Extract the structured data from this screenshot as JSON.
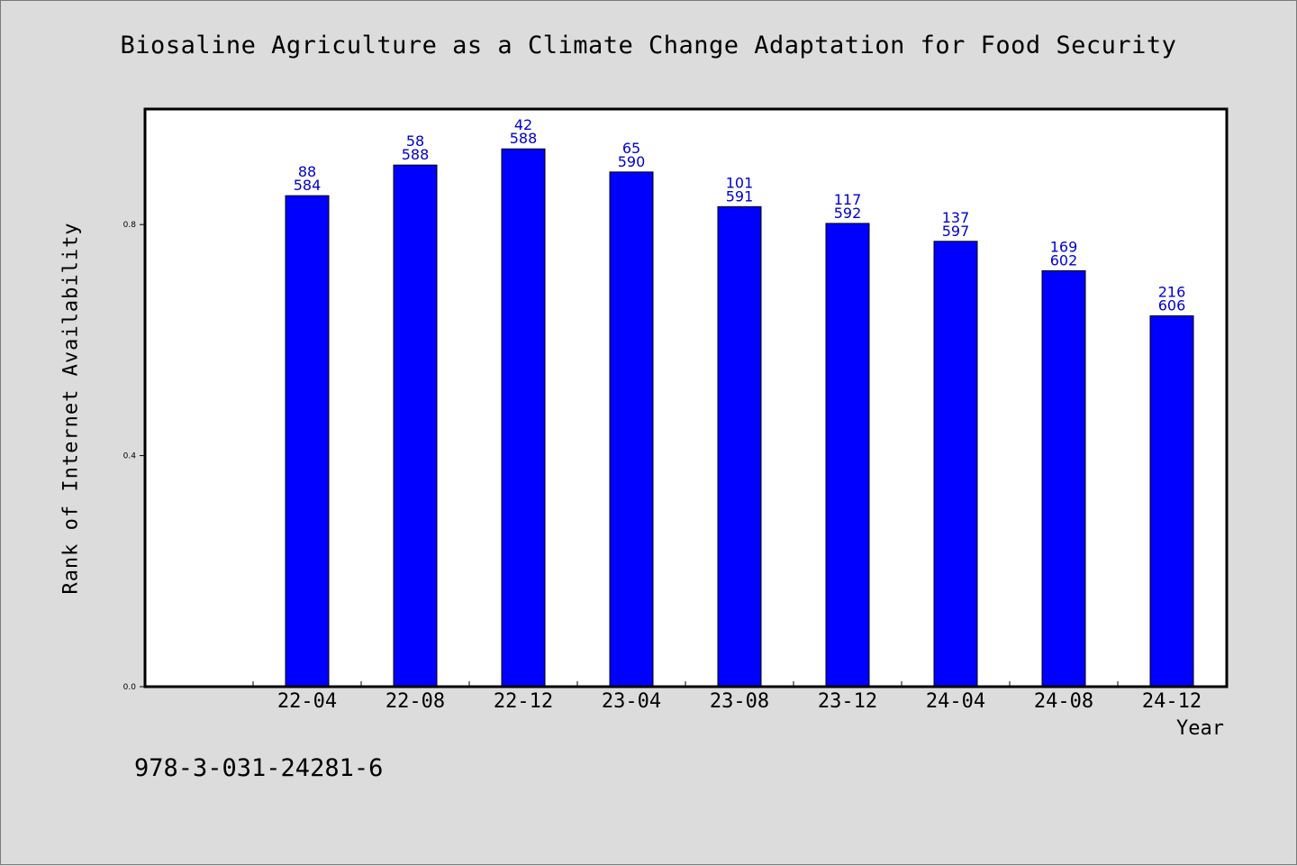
{
  "chart_data": {
    "type": "bar",
    "title": "Biosaline Agriculture as a Climate Change Adaptation for Food Security",
    "xlabel": "Year",
    "ylabel": "Rank of Internet Availability",
    "categories": [
      "22-04",
      "22-08",
      "22-12",
      "23-04",
      "23-08",
      "23-12",
      "24-04",
      "24-08",
      "24-12"
    ],
    "values": [
      0.85,
      0.903,
      0.931,
      0.891,
      0.831,
      0.802,
      0.771,
      0.72,
      0.642
    ],
    "label_top": [
      "88",
      "58",
      "42",
      "65",
      "101",
      "117",
      "137",
      "169",
      "216"
    ],
    "label_bottom": [
      "584",
      "588",
      "588",
      "590",
      "591",
      "592",
      "597",
      "602",
      "606"
    ],
    "yticks": [
      "0.0",
      "0.4",
      "0.8"
    ],
    "ytick_values": [
      0.0,
      0.4,
      0.8
    ],
    "ylim": [
      0,
      1.0
    ],
    "grid": false,
    "legend": "none",
    "colors": {
      "bar": "#0000ff",
      "bar_edge": "#000000",
      "label": "#0000cc",
      "plot_bg": "#ffffff",
      "page_bg": "#dcdcdc"
    }
  },
  "footer": {
    "isbn": "978-3-031-24281-6"
  }
}
